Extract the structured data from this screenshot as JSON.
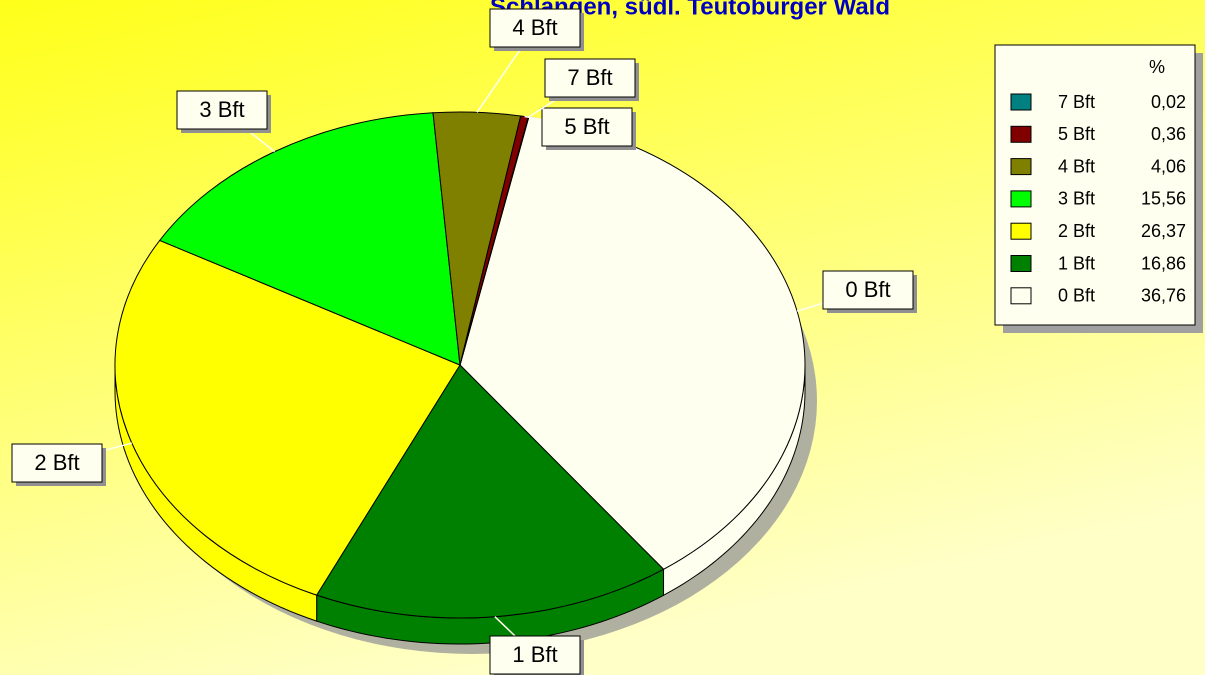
{
  "chart_data": {
    "type": "pie",
    "title": "Schlangen, südl. Teutoburger Wald",
    "legend_header": "%",
    "categories": [
      "7 Bft",
      "5 Bft",
      "4 Bft",
      "3 Bft",
      "2 Bft",
      "1 Bft",
      "0 Bft"
    ],
    "values": [
      0.02,
      0.36,
      4.06,
      15.56,
      26.37,
      16.86,
      36.76
    ],
    "value_labels": [
      "0,02",
      "0,36",
      "4,06",
      "15,56",
      "26,37",
      "16,86",
      "36,76"
    ],
    "colors": [
      "#008080",
      "#800000",
      "#808000",
      "#00ff00",
      "#ffff00",
      "#008000",
      "#fffff0"
    ],
    "legend": "top-right"
  }
}
